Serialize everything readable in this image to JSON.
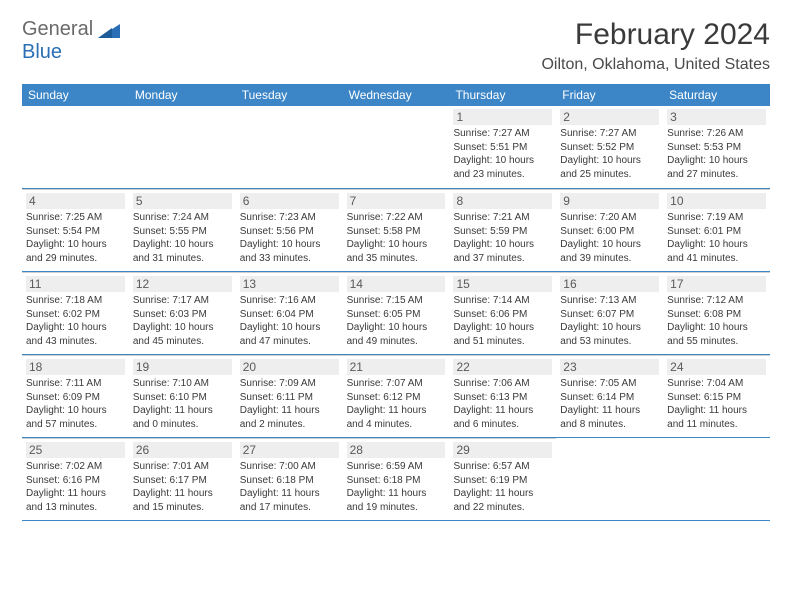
{
  "logo": {
    "left": "General",
    "right": "Blue"
  },
  "title": "February 2024",
  "location": "Oilton, Oklahoma, United States",
  "colors": {
    "header_bg": "#3c86c8",
    "header_text": "#ffffff",
    "rule": "#3c86c8",
    "daynum_bg": "#eeeeee",
    "body_text": "#3a3a3a",
    "logo_gray": "#6a6a6a",
    "logo_blue": "#2a6fb5"
  },
  "day_names": [
    "Sunday",
    "Monday",
    "Tuesday",
    "Wednesday",
    "Thursday",
    "Friday",
    "Saturday"
  ],
  "weeks": [
    [
      null,
      null,
      null,
      null,
      {
        "n": "1",
        "sr": "Sunrise: 7:27 AM",
        "ss": "Sunset: 5:51 PM",
        "d1": "Daylight: 10 hours",
        "d2": "and 23 minutes."
      },
      {
        "n": "2",
        "sr": "Sunrise: 7:27 AM",
        "ss": "Sunset: 5:52 PM",
        "d1": "Daylight: 10 hours",
        "d2": "and 25 minutes."
      },
      {
        "n": "3",
        "sr": "Sunrise: 7:26 AM",
        "ss": "Sunset: 5:53 PM",
        "d1": "Daylight: 10 hours",
        "d2": "and 27 minutes."
      }
    ],
    [
      {
        "n": "4",
        "sr": "Sunrise: 7:25 AM",
        "ss": "Sunset: 5:54 PM",
        "d1": "Daylight: 10 hours",
        "d2": "and 29 minutes."
      },
      {
        "n": "5",
        "sr": "Sunrise: 7:24 AM",
        "ss": "Sunset: 5:55 PM",
        "d1": "Daylight: 10 hours",
        "d2": "and 31 minutes."
      },
      {
        "n": "6",
        "sr": "Sunrise: 7:23 AM",
        "ss": "Sunset: 5:56 PM",
        "d1": "Daylight: 10 hours",
        "d2": "and 33 minutes."
      },
      {
        "n": "7",
        "sr": "Sunrise: 7:22 AM",
        "ss": "Sunset: 5:58 PM",
        "d1": "Daylight: 10 hours",
        "d2": "and 35 minutes."
      },
      {
        "n": "8",
        "sr": "Sunrise: 7:21 AM",
        "ss": "Sunset: 5:59 PM",
        "d1": "Daylight: 10 hours",
        "d2": "and 37 minutes."
      },
      {
        "n": "9",
        "sr": "Sunrise: 7:20 AM",
        "ss": "Sunset: 6:00 PM",
        "d1": "Daylight: 10 hours",
        "d2": "and 39 minutes."
      },
      {
        "n": "10",
        "sr": "Sunrise: 7:19 AM",
        "ss": "Sunset: 6:01 PM",
        "d1": "Daylight: 10 hours",
        "d2": "and 41 minutes."
      }
    ],
    [
      {
        "n": "11",
        "sr": "Sunrise: 7:18 AM",
        "ss": "Sunset: 6:02 PM",
        "d1": "Daylight: 10 hours",
        "d2": "and 43 minutes."
      },
      {
        "n": "12",
        "sr": "Sunrise: 7:17 AM",
        "ss": "Sunset: 6:03 PM",
        "d1": "Daylight: 10 hours",
        "d2": "and 45 minutes."
      },
      {
        "n": "13",
        "sr": "Sunrise: 7:16 AM",
        "ss": "Sunset: 6:04 PM",
        "d1": "Daylight: 10 hours",
        "d2": "and 47 minutes."
      },
      {
        "n": "14",
        "sr": "Sunrise: 7:15 AM",
        "ss": "Sunset: 6:05 PM",
        "d1": "Daylight: 10 hours",
        "d2": "and 49 minutes."
      },
      {
        "n": "15",
        "sr": "Sunrise: 7:14 AM",
        "ss": "Sunset: 6:06 PM",
        "d1": "Daylight: 10 hours",
        "d2": "and 51 minutes."
      },
      {
        "n": "16",
        "sr": "Sunrise: 7:13 AM",
        "ss": "Sunset: 6:07 PM",
        "d1": "Daylight: 10 hours",
        "d2": "and 53 minutes."
      },
      {
        "n": "17",
        "sr": "Sunrise: 7:12 AM",
        "ss": "Sunset: 6:08 PM",
        "d1": "Daylight: 10 hours",
        "d2": "and 55 minutes."
      }
    ],
    [
      {
        "n": "18",
        "sr": "Sunrise: 7:11 AM",
        "ss": "Sunset: 6:09 PM",
        "d1": "Daylight: 10 hours",
        "d2": "and 57 minutes."
      },
      {
        "n": "19",
        "sr": "Sunrise: 7:10 AM",
        "ss": "Sunset: 6:10 PM",
        "d1": "Daylight: 11 hours",
        "d2": "and 0 minutes."
      },
      {
        "n": "20",
        "sr": "Sunrise: 7:09 AM",
        "ss": "Sunset: 6:11 PM",
        "d1": "Daylight: 11 hours",
        "d2": "and 2 minutes."
      },
      {
        "n": "21",
        "sr": "Sunrise: 7:07 AM",
        "ss": "Sunset: 6:12 PM",
        "d1": "Daylight: 11 hours",
        "d2": "and 4 minutes."
      },
      {
        "n": "22",
        "sr": "Sunrise: 7:06 AM",
        "ss": "Sunset: 6:13 PM",
        "d1": "Daylight: 11 hours",
        "d2": "and 6 minutes."
      },
      {
        "n": "23",
        "sr": "Sunrise: 7:05 AM",
        "ss": "Sunset: 6:14 PM",
        "d1": "Daylight: 11 hours",
        "d2": "and 8 minutes."
      },
      {
        "n": "24",
        "sr": "Sunrise: 7:04 AM",
        "ss": "Sunset: 6:15 PM",
        "d1": "Daylight: 11 hours",
        "d2": "and 11 minutes."
      }
    ],
    [
      {
        "n": "25",
        "sr": "Sunrise: 7:02 AM",
        "ss": "Sunset: 6:16 PM",
        "d1": "Daylight: 11 hours",
        "d2": "and 13 minutes."
      },
      {
        "n": "26",
        "sr": "Sunrise: 7:01 AM",
        "ss": "Sunset: 6:17 PM",
        "d1": "Daylight: 11 hours",
        "d2": "and 15 minutes."
      },
      {
        "n": "27",
        "sr": "Sunrise: 7:00 AM",
        "ss": "Sunset: 6:18 PM",
        "d1": "Daylight: 11 hours",
        "d2": "and 17 minutes."
      },
      {
        "n": "28",
        "sr": "Sunrise: 6:59 AM",
        "ss": "Sunset: 6:18 PM",
        "d1": "Daylight: 11 hours",
        "d2": "and 19 minutes."
      },
      {
        "n": "29",
        "sr": "Sunrise: 6:57 AM",
        "ss": "Sunset: 6:19 PM",
        "d1": "Daylight: 11 hours",
        "d2": "and 22 minutes."
      },
      null,
      null
    ]
  ]
}
